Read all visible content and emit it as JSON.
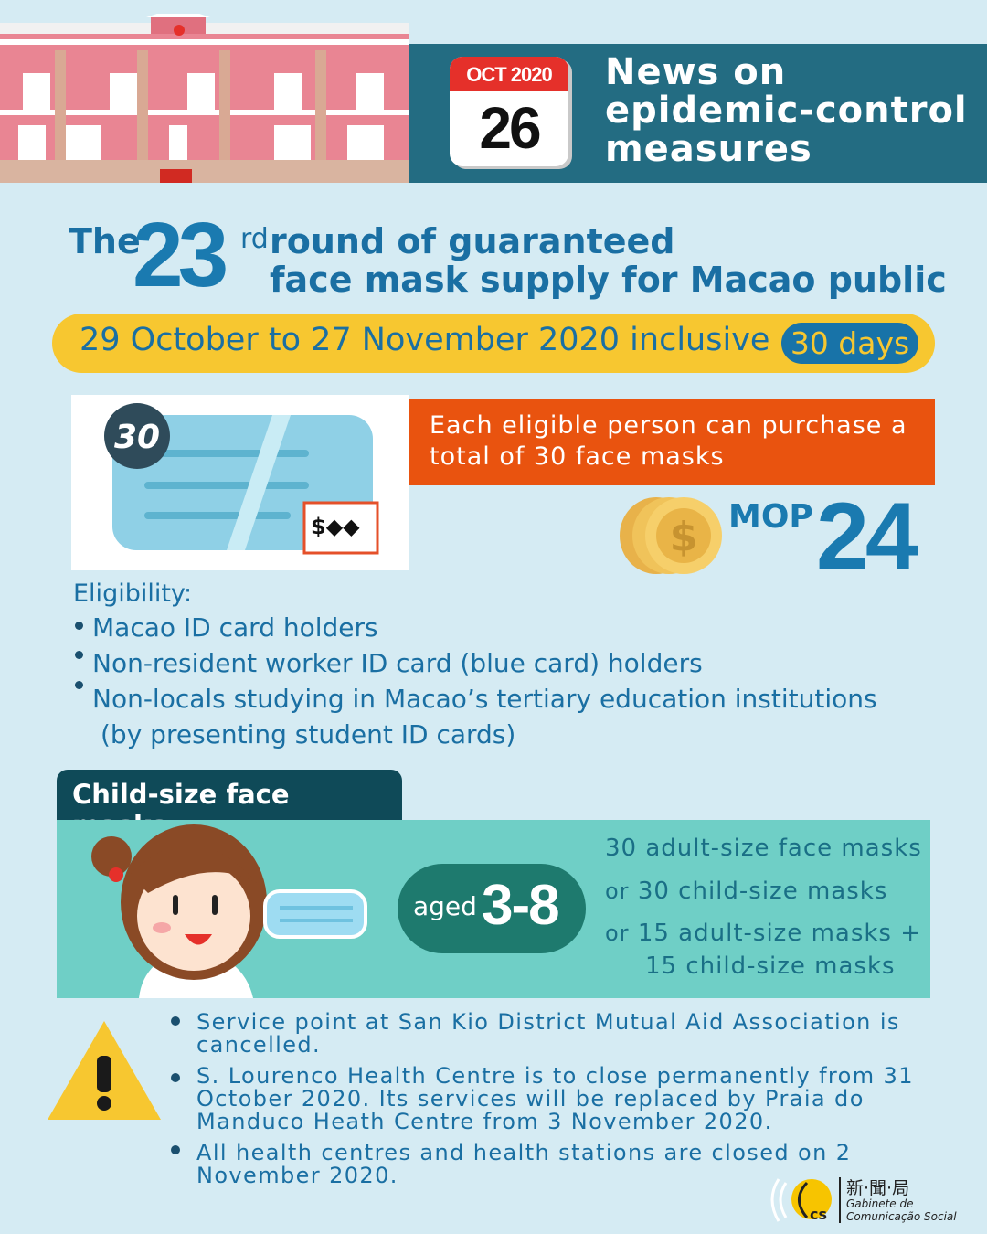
{
  "header": {
    "month_year": "OCT 2020",
    "day": "26",
    "title_lines": [
      "News on",
      "epidemic-control",
      "measures"
    ]
  },
  "headline": {
    "prefix": "The",
    "round_number": "23",
    "ordinal_suffix": "rd",
    "line1": "round of guaranteed",
    "line2": "face mask supply for Macao public"
  },
  "period": {
    "dates": "29 October to 27 November 2020 inclusive",
    "duration": "30 days"
  },
  "purchase": {
    "illustration_badge": "30",
    "text": "Each eligible person can purchase a total of 30 face masks",
    "currency": "MOP",
    "price": "24"
  },
  "eligibility": {
    "label": "Eligibility:",
    "items": [
      "Macao ID card holders",
      "Non-resident worker ID card (blue card) holders",
      "Non-locals studying in Macao’s tertiary education institutions",
      "(by presenting student ID cards)"
    ]
  },
  "child": {
    "tab_label": "Child-size face masks",
    "aged_label": "aged",
    "age_range": "3-8",
    "options": [
      {
        "prefix": "",
        "text": "30 adult-size face masks"
      },
      {
        "prefix": "or",
        "text": "30 child-size masks"
      },
      {
        "prefix": "or",
        "text": "15 adult-size masks +"
      },
      {
        "prefix": "",
        "text": "15 child-size masks"
      }
    ]
  },
  "notices": [
    "Service point at San Kio District Mutual Aid Association is cancelled.",
    "S. Lourenco Health Centre is to close permanently from 31 October 2020. Its services will be replaced by Praia do Manduco Heath Centre from 3 November 2020.",
    "All health centres and health stations are closed on 2 November 2020."
  ],
  "logo": {
    "chinese": "新·聞·局",
    "line1": "Gabinete de",
    "line2": "Comunicação Social",
    "abbr": "GCS"
  },
  "colors": {
    "background": "#d5ebf3",
    "band": "#236c82",
    "yellow": "#f7c730",
    "orange": "#e9530f",
    "teal": "#6fcfc6",
    "blue": "#1a6fa3"
  }
}
